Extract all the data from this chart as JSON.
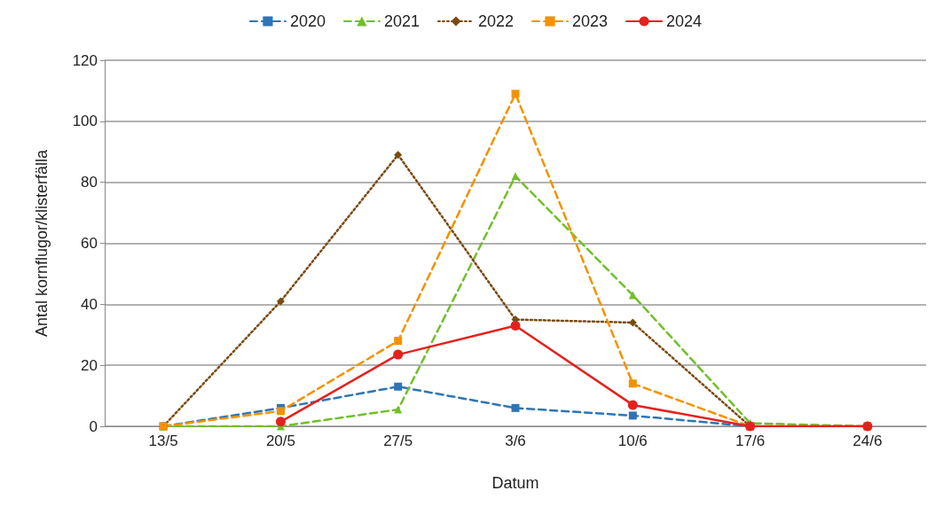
{
  "chart_data": {
    "type": "line",
    "xlabel": "Datum",
    "ylabel": "Antal kornflugor/klisterfälla",
    "categories": [
      "13/5",
      "20/5",
      "27/5",
      "3/6",
      "10/6",
      "17/6",
      "24/6"
    ],
    "series": [
      {
        "name": "2020",
        "color": "#2e75b6",
        "marker": "square",
        "line_style": "dashed",
        "values": [
          0,
          6,
          13,
          6,
          3.5,
          0,
          null
        ]
      },
      {
        "name": "2021",
        "color": "#70c02a",
        "marker": "triangle",
        "line_style": "dashed",
        "values": [
          0,
          0,
          5.5,
          82,
          43,
          1,
          0
        ]
      },
      {
        "name": "2022",
        "color": "#7a4a10",
        "marker": "diamond",
        "line_style": "dotted",
        "values": [
          0,
          41,
          89,
          35,
          34,
          0,
          null
        ]
      },
      {
        "name": "2023",
        "color": "#f39200",
        "marker": "square",
        "line_style": "dashed",
        "values": [
          0,
          5,
          28,
          109,
          14,
          0,
          0
        ]
      },
      {
        "name": "2024",
        "color": "#e3221f",
        "marker": "circle",
        "line_style": "solid",
        "values": [
          null,
          1.5,
          23.5,
          33,
          7,
          0,
          0
        ]
      }
    ],
    "ylim": [
      0,
      120
    ],
    "yticks": [
      0,
      20,
      40,
      60,
      80,
      100,
      120
    ],
    "grid": "y",
    "legend": "top"
  }
}
